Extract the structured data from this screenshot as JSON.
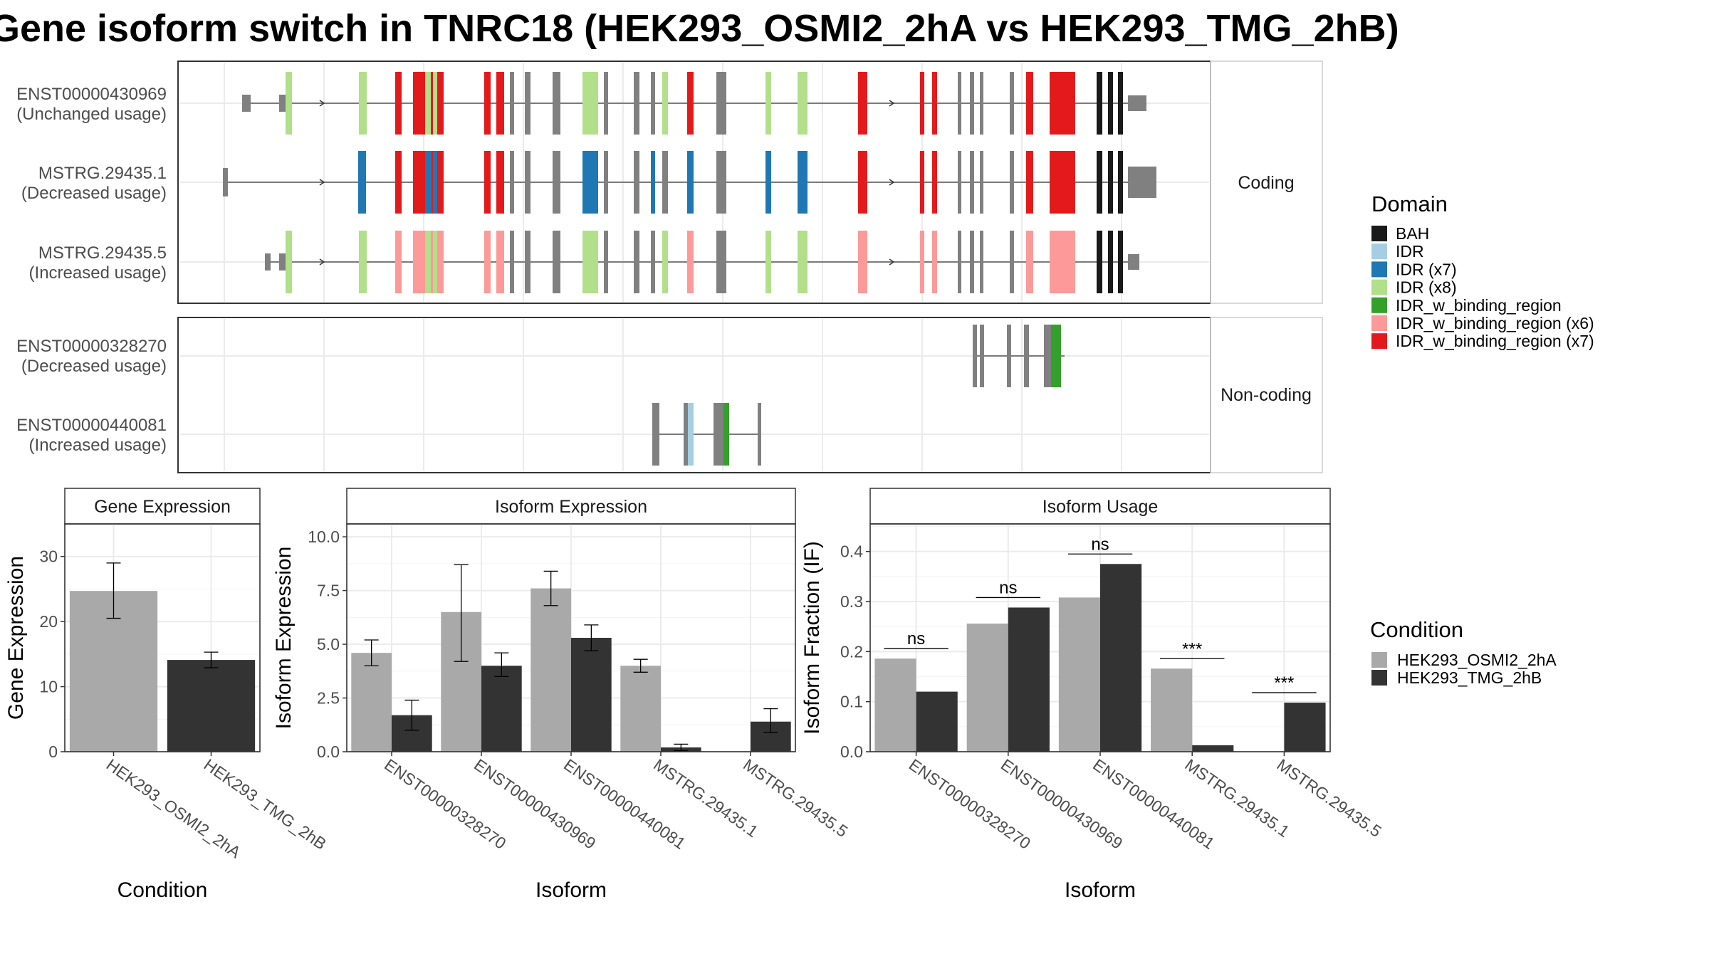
{
  "title": "Gene isoform switch in TNRC18 (HEK293_OSMI2_2hA vs HEK293_TMG_2hB)",
  "structure": {
    "coding_strip": "Coding",
    "noncoding_strip": "Non-coding",
    "coding_transcripts": [
      {
        "id": "ENST00000430969",
        "usage": "(Unchanged usage)"
      },
      {
        "id": "MSTRG.29435.1",
        "usage": "(Decreased usage)"
      },
      {
        "id": "MSTRG.29435.5",
        "usage": "(Increased usage)"
      }
    ],
    "noncoding_transcripts": [
      {
        "id": "ENST00000328270",
        "usage": "(Decreased usage)"
      },
      {
        "id": "ENST00000440081",
        "usage": "(Increased usage)"
      }
    ]
  },
  "legend_domain": {
    "title": "Domain",
    "items": [
      {
        "label": "BAH",
        "color": "#1a1a1a"
      },
      {
        "label": "IDR",
        "color": "#a6cee3"
      },
      {
        "label": "IDR (x7)",
        "color": "#1f78b4"
      },
      {
        "label": "IDR (x8)",
        "color": "#b2df8a"
      },
      {
        "label": "IDR_w_binding_region",
        "color": "#33a02c"
      },
      {
        "label": "IDR_w_binding_region (x6)",
        "color": "#fb9a99"
      },
      {
        "label": "IDR_w_binding_region (x7)",
        "color": "#e31a1c"
      }
    ]
  },
  "legend_condition": {
    "title": "Condition",
    "items": [
      {
        "label": "HEK293_OSMI2_2hA",
        "color": "#a9a9a9"
      },
      {
        "label": "HEK293_TMG_2hB",
        "color": "#333333"
      }
    ]
  },
  "chart_data": [
    {
      "type": "bar",
      "title": "Gene Expression",
      "xlabel": "Condition",
      "ylabel": "Gene Expression",
      "ylim": [
        0,
        35
      ],
      "yticks": [
        "0",
        "10",
        "20",
        "30"
      ],
      "categories": [
        "HEK293_OSMI2_2hA",
        "HEK293_TMG_2hB"
      ],
      "values": [
        24.7,
        14.1
      ],
      "error_low": [
        20.5,
        12.9
      ],
      "error_high": [
        29.0,
        15.3
      ]
    },
    {
      "type": "bar",
      "title": "Isoform Expression",
      "xlabel": "Isoform",
      "ylabel": "Isoform Expression",
      "ylim": [
        0,
        10.6
      ],
      "yticks": [
        "0.0",
        "2.5",
        "5.0",
        "7.5",
        "10.0"
      ],
      "categories": [
        "ENST00000328270",
        "ENST00000430969",
        "ENST00000440081",
        "MSTRG.29435.1",
        "MSTRG.29435.5"
      ],
      "series": [
        {
          "name": "HEK293_OSMI2_2hA",
          "values": [
            4.6,
            6.5,
            7.6,
            4.0,
            0.0
          ],
          "error_low": [
            4.0,
            4.2,
            6.8,
            3.7,
            0.0
          ],
          "error_high": [
            5.2,
            8.7,
            8.4,
            4.3,
            0.0
          ]
        },
        {
          "name": "HEK293_TMG_2hB",
          "values": [
            1.7,
            4.0,
            5.3,
            0.2,
            1.4
          ],
          "error_low": [
            1.0,
            3.5,
            4.7,
            0.05,
            0.9
          ],
          "error_high": [
            2.4,
            4.6,
            5.9,
            0.35,
            2.0
          ]
        }
      ]
    },
    {
      "type": "bar",
      "title": "Isoform Usage",
      "xlabel": "Isoform",
      "ylabel": "Isoform Fraction (IF)",
      "ylim": [
        0,
        0.455
      ],
      "yticks": [
        "0.0",
        "0.1",
        "0.2",
        "0.3",
        "0.4"
      ],
      "categories": [
        "ENST00000328270",
        "ENST00000430969",
        "ENST00000440081",
        "MSTRG.29435.1",
        "MSTRG.29435.5"
      ],
      "series": [
        {
          "name": "HEK293_OSMI2_2hA",
          "values": [
            0.186,
            0.256,
            0.308,
            0.166,
            0.0
          ]
        },
        {
          "name": "HEK293_TMG_2hB",
          "values": [
            0.12,
            0.288,
            0.375,
            0.013,
            0.098
          ]
        }
      ],
      "significance": [
        "ns",
        "ns",
        "ns",
        "***",
        "***"
      ]
    }
  ]
}
